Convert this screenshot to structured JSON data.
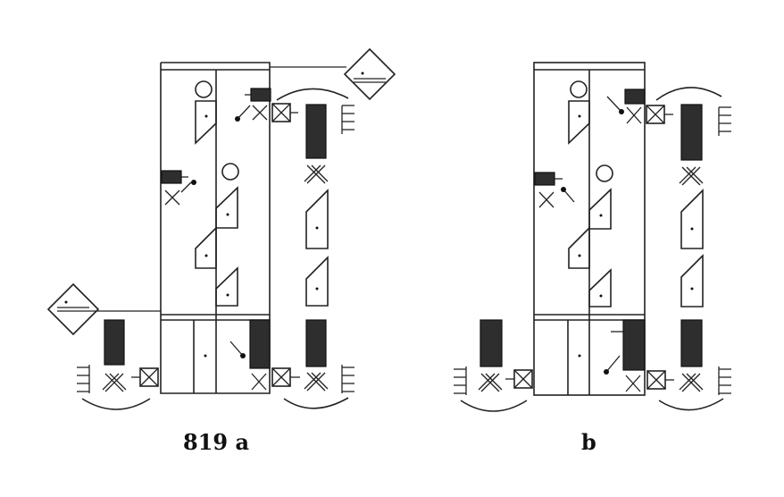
{
  "figure": {
    "label_a": "819 a",
    "label_b": "b"
  }
}
